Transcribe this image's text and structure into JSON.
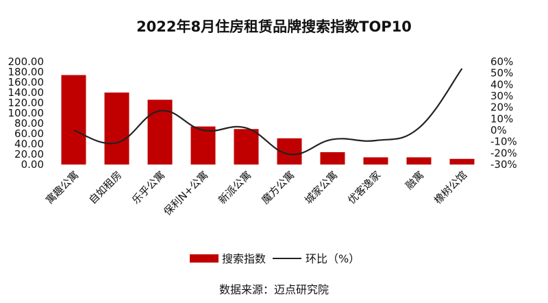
{
  "chart_data": {
    "type": "bar",
    "title": "2022年8月住房租赁品牌搜索指数TOP10",
    "categories": [
      "寓趣公寓",
      "自如租房",
      "乐乎公寓",
      "保利N+公寓",
      "新派公寓",
      "魔方公寓",
      "城家公寓",
      "优客逸家",
      "融寓",
      "橡树公馆"
    ],
    "series": [
      {
        "name": "搜索指数",
        "type": "bar",
        "axis": "left",
        "color": "#c00000",
        "values": [
          174,
          140,
          126,
          74,
          69,
          51,
          24,
          14,
          14,
          11
        ]
      },
      {
        "name": "环比（%）",
        "type": "line",
        "axis": "right",
        "color": "#222222",
        "values": [
          0,
          -11,
          17,
          0,
          2,
          -21,
          -8,
          -9,
          2,
          54
        ]
      }
    ],
    "left_axis": {
      "ylim": [
        0,
        200
      ],
      "ticks": [
        "0.00",
        "20.00",
        "40.00",
        "60.00",
        "80.00",
        "100.00",
        "120.00",
        "140.00",
        "160.00",
        "180.00",
        "200.00"
      ],
      "tick_values": [
        0,
        20,
        40,
        60,
        80,
        100,
        120,
        140,
        160,
        180,
        200
      ]
    },
    "right_axis": {
      "ylim": [
        -30,
        60
      ],
      "ticks": [
        "-30%",
        "-20%",
        "-10%",
        "0%",
        "10%",
        "20%",
        "30%",
        "40%",
        "50%",
        "60%"
      ],
      "tick_values": [
        -30,
        -20,
        -10,
        0,
        10,
        20,
        30,
        40,
        50,
        60
      ]
    },
    "legend": {
      "position": "bottom",
      "bar_label": "搜索指数",
      "line_label": "环比（%）"
    },
    "source": "数据来源：迈点研究院",
    "grid": false
  }
}
